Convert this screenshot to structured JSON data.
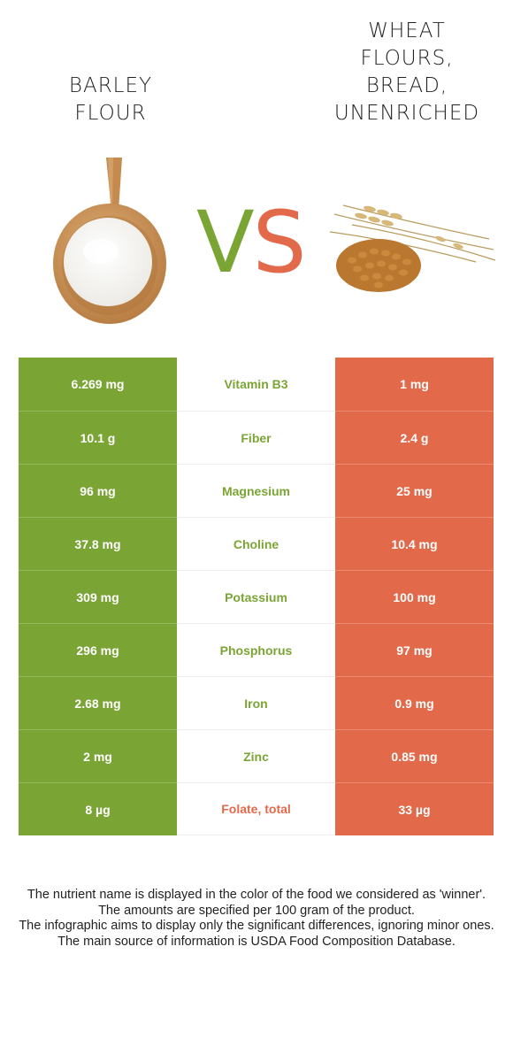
{
  "left_food": {
    "title": "BARLEY\nFLOUR",
    "image_icon": "wooden-spoon-with-flour-icon",
    "color": "#7aa534"
  },
  "right_food": {
    "title": "WHEAT\nFLOURS,\nBREAD,\nUNENRICHED",
    "image_icon": "wheat-grains-and-ears-icon",
    "color": "#e2694a"
  },
  "vs": {
    "v": "V",
    "s": "S"
  },
  "rows": [
    {
      "left": "6.269 mg",
      "nutrient": "Vitamin B3",
      "right": "1 mg",
      "winner": "left"
    },
    {
      "left": "10.1 g",
      "nutrient": "Fiber",
      "right": "2.4 g",
      "winner": "left"
    },
    {
      "left": "96 mg",
      "nutrient": "Magnesium",
      "right": "25 mg",
      "winner": "left"
    },
    {
      "left": "37.8 mg",
      "nutrient": "Choline",
      "right": "10.4 mg",
      "winner": "left"
    },
    {
      "left": "309 mg",
      "nutrient": "Potassium",
      "right": "100 mg",
      "winner": "left"
    },
    {
      "left": "296 mg",
      "nutrient": "Phosphorus",
      "right": "97 mg",
      "winner": "left"
    },
    {
      "left": "2.68 mg",
      "nutrient": "Iron",
      "right": "0.9 mg",
      "winner": "left"
    },
    {
      "left": "2 mg",
      "nutrient": "Zinc",
      "right": "0.85 mg",
      "winner": "left"
    },
    {
      "left": "8 µg",
      "nutrient": "Folate, total",
      "right": "33 µg",
      "winner": "right"
    }
  ],
  "footnotes": [
    "The nutrient name is displayed in the color of the food we considered as 'winner'.",
    "The amounts are specified per 100 gram of the product.",
    "The infographic aims to display only the significant differences, ignoring minor ones.",
    "The main source of information is USDA Food Composition Database."
  ]
}
